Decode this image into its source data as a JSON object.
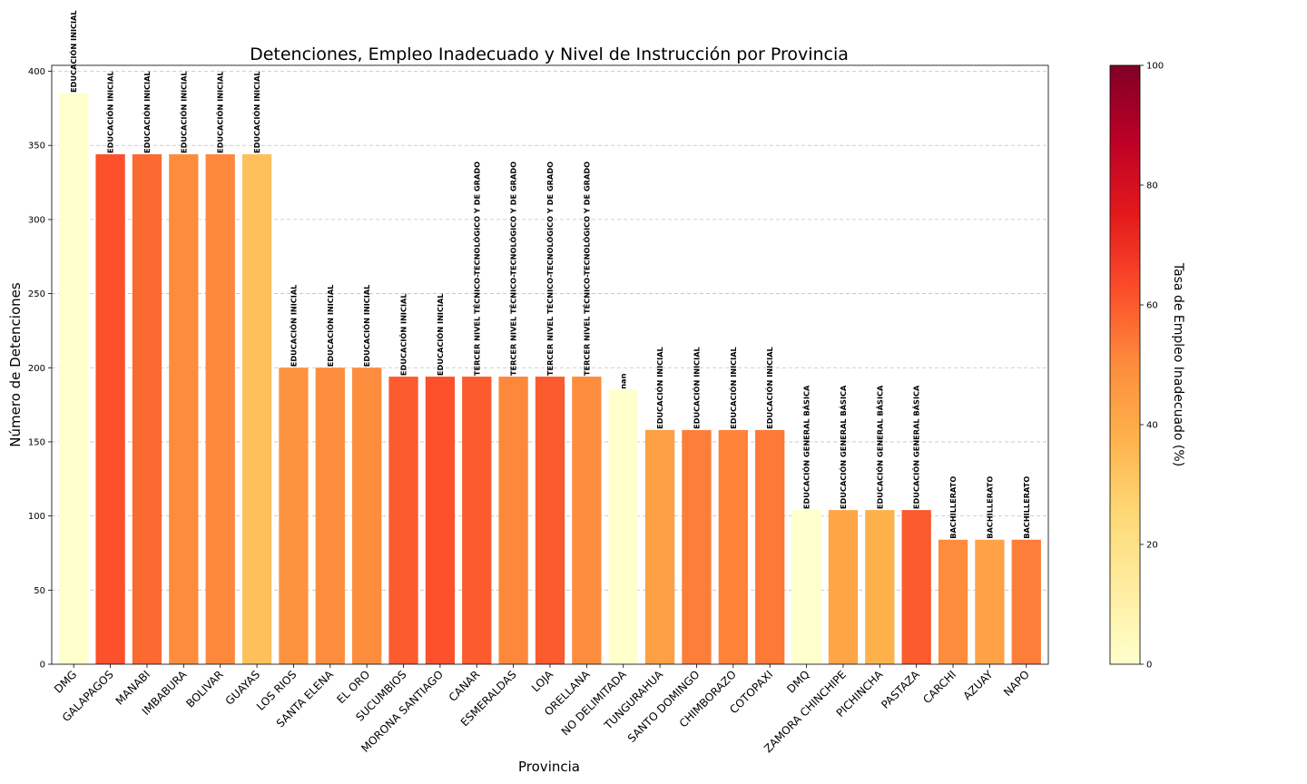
{
  "chart_data": {
    "type": "bar",
    "title": "Detenciones, Empleo Inadecuado y Nivel de Instrucción por Provincia",
    "xlabel": "Provincia",
    "ylabel": "Número de Detenciones",
    "ylim": [
      0,
      404
    ],
    "yticks": [
      0,
      50,
      100,
      150,
      200,
      250,
      300,
      350,
      400
    ],
    "grid": "horizontal dashed",
    "categories": [
      "DMG",
      "GALAPAGOS",
      "MANABI",
      "IMBABURA",
      "BOLIVAR",
      "GUAYAS",
      "LOS RIOS",
      "SANTA ELENA",
      "EL ORO",
      "SUCUMBIOS",
      "MORONA SANTIAGO",
      "CANAR",
      "ESMERALDAS",
      "LOJA",
      "ORELLANA",
      "NO DELIMITADA",
      "TUNGURAHUA",
      "SANTO DOMINGO",
      "CHIMBORAZO",
      "COTOPAXI",
      "DMQ",
      "ZAMORA CHINCHIPE",
      "PICHINCHA",
      "PASTAZA",
      "CARCHI",
      "AZUAY",
      "NAPO"
    ],
    "values": [
      385,
      344,
      344,
      344,
      344,
      344,
      200,
      200,
      200,
      194,
      194,
      194,
      194,
      194,
      194,
      185,
      158,
      158,
      158,
      158,
      104,
      104,
      104,
      104,
      84,
      84,
      84
    ],
    "empleo_inadecuado": [
      0,
      62,
      57,
      50,
      51,
      33,
      48,
      50,
      50,
      60,
      62,
      60,
      51,
      60,
      50,
      0,
      44,
      53,
      52,
      54,
      0,
      42,
      38,
      60,
      50,
      43,
      53
    ],
    "bar_labels": [
      "EDUCACIÓN INICIAL",
      "EDUCACIÓN INICIAL",
      "EDUCACIÓN INICIAL",
      "EDUCACIÓN INICIAL",
      "EDUCACIÓN INICIAL",
      "EDUCACIÓN INICIAL",
      "EDUCACIÓN INICIAL",
      "EDUCACIÓN INICIAL",
      "EDUCACIÓN INICIAL",
      "EDUCACIÓN INICIAL",
      "EDUCACIÓN INICIAL",
      "TERCER NIVEL TÉCNICO-TECNOLÓGICO Y DE GRADO",
      "TERCER NIVEL TÉCNICO-TECNOLÓGICO Y DE GRADO",
      "TERCER NIVEL TÉCNICO-TECNOLÓGICO Y DE GRADO",
      "TERCER NIVEL TÉCNICO-TECNOLÓGICO Y DE GRADO",
      "nan",
      "EDUCACIÓN INICIAL",
      "EDUCACIÓN INICIAL",
      "EDUCACIÓN INICIAL",
      "EDUCACIÓN INICIAL",
      "EDUCACIÓN GENERAL BÁSICA",
      "EDUCACIÓN GENERAL BÁSICA",
      "EDUCACIÓN GENERAL BÁSICA",
      "EDUCACIÓN GENERAL BÁSICA",
      "BACHILLERATO",
      "BACHILLERATO",
      "BACHILLERATO"
    ],
    "colorbar": {
      "label": "Tasa de Empleo Inadecuado (%)",
      "range": [
        0,
        100
      ],
      "ticks": [
        0,
        20,
        40,
        60,
        80,
        100
      ],
      "colormap": "YlOrRd",
      "stops": [
        "#ffffcc",
        "#ffeda0",
        "#fed976",
        "#feb24c",
        "#fd8d3c",
        "#fc4e2a",
        "#e31a1c",
        "#bd0026",
        "#800026"
      ]
    }
  }
}
